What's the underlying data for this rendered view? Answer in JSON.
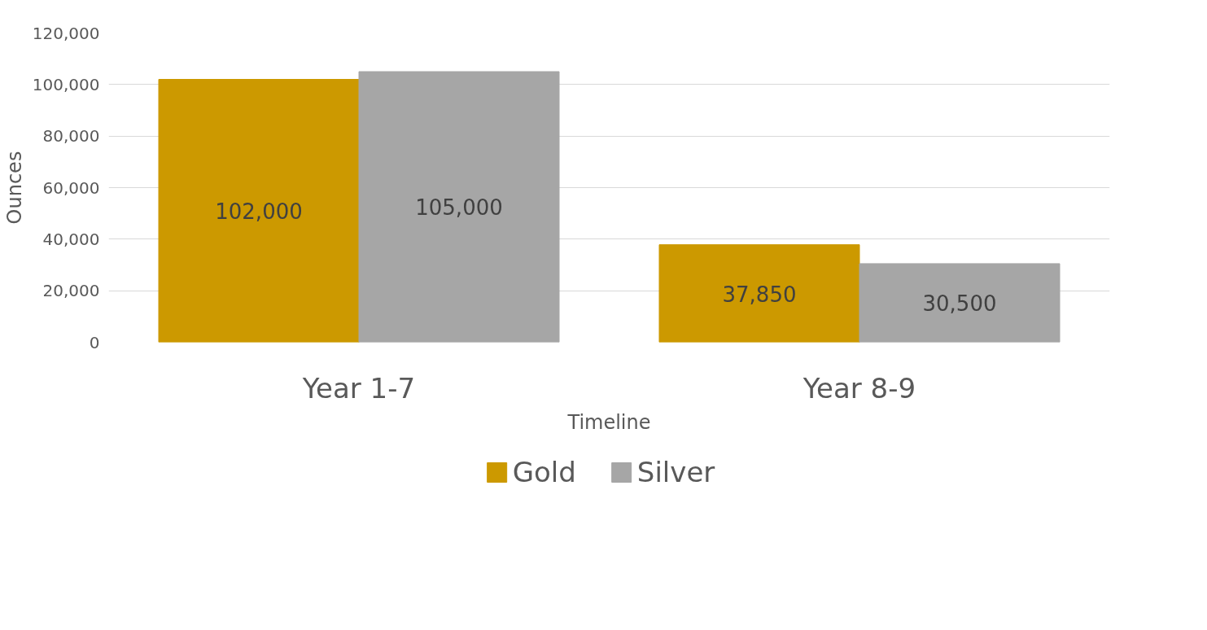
{
  "chart_data": {
    "type": "bar",
    "xlabel": "Timeline",
    "ylabel": "Ounces",
    "categories": [
      "Year 1-7",
      "Year 8-9"
    ],
    "series": [
      {
        "name": "Gold",
        "color": "#cc9900",
        "values": [
          102000,
          37850
        ],
        "value_labels": [
          "102,000",
          "37,850"
        ]
      },
      {
        "name": "Silver",
        "color": "#a6a6a6",
        "values": [
          105000,
          30500
        ],
        "value_labels": [
          "105,000",
          "30,500"
        ]
      }
    ],
    "ylim": [
      0,
      120000
    ],
    "yticks": [
      {
        "value": 0,
        "label": "0"
      },
      {
        "value": 20000,
        "label": "20,000"
      },
      {
        "value": 40000,
        "label": "40,000"
      },
      {
        "value": 60000,
        "label": "60,000"
      },
      {
        "value": 80000,
        "label": "80,000"
      },
      {
        "value": 100000,
        "label": "100,000"
      },
      {
        "value": 120000,
        "label": "120,000"
      }
    ],
    "grid": "y",
    "legend": "bottom"
  }
}
